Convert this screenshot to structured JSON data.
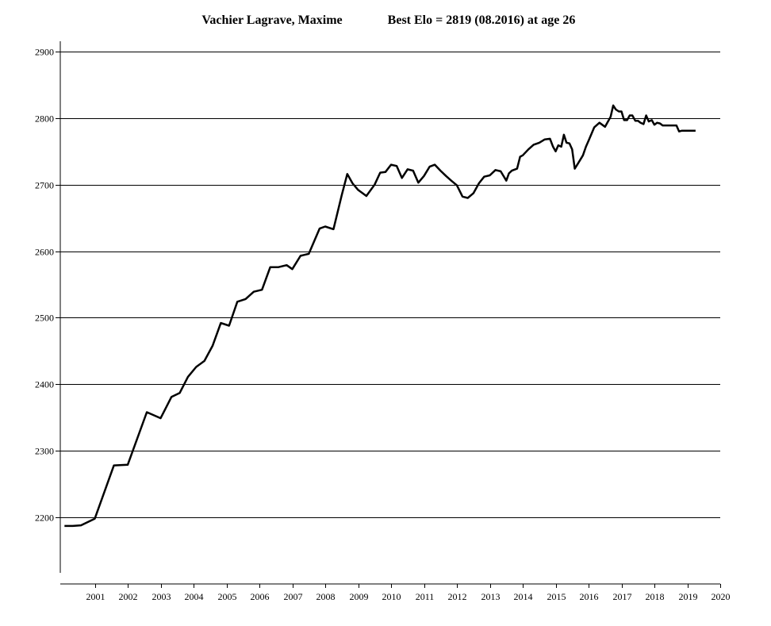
{
  "chart_data": {
    "type": "line",
    "title_name": "Vachier Lagrave, Maxime",
    "title_best": "Best Elo = 2819 (08.2016) at age 26",
    "xlabel": "",
    "ylabel": "",
    "xlim": [
      2000,
      2020
    ],
    "ylim": [
      2100,
      2900
    ],
    "x_ticks": [
      "2001",
      "2002",
      "2003",
      "2004",
      "2005",
      "2006",
      "2007",
      "2008",
      "2009",
      "2010",
      "2011",
      "2012",
      "2013",
      "2014",
      "2015",
      "2016",
      "2017",
      "2018",
      "2019",
      "2020"
    ],
    "y_ticks": [
      "2200",
      "2300",
      "2400",
      "2500",
      "2600",
      "2700",
      "2800",
      "2900"
    ],
    "grid": true,
    "series": [
      {
        "x": [
          2000.08,
          2000.33,
          2000.58,
          2001.0,
          2001.58,
          2002.0,
          2002.58,
          2003.0,
          2003.33,
          2003.58,
          2003.83,
          2004.08,
          2004.33,
          2004.58,
          2004.83,
          2005.08,
          2005.33,
          2005.58,
          2005.83,
          2006.08,
          2006.33,
          2006.58,
          2006.83,
          2007.0,
          2007.25,
          2007.5,
          2007.83,
          2008.0,
          2008.25,
          2008.5,
          2008.67,
          2008.83,
          2009.0,
          2009.25,
          2009.5,
          2009.67,
          2009.83,
          2010.0,
          2010.17,
          2010.33,
          2010.5,
          2010.67,
          2010.83,
          2011.0,
          2011.17,
          2011.33,
          2011.5,
          2011.67,
          2011.83,
          2012.0,
          2012.17,
          2012.33,
          2012.5,
          2012.67,
          2012.83,
          2013.0,
          2013.17,
          2013.33,
          2013.5,
          2013.58,
          2013.67,
          2013.83,
          2013.92,
          2014.0,
          2014.17,
          2014.33,
          2014.5,
          2014.67,
          2014.83,
          2014.92,
          2015.0,
          2015.08,
          2015.17,
          2015.25,
          2015.33,
          2015.42,
          2015.5,
          2015.58,
          2015.67,
          2015.83,
          2015.92,
          2016.0,
          2016.17,
          2016.33,
          2016.5,
          2016.67,
          2016.75,
          2016.83,
          2016.92,
          2017.0,
          2017.08,
          2017.17,
          2017.25,
          2017.33,
          2017.42,
          2017.5,
          2017.58,
          2017.67,
          2017.75,
          2017.83,
          2017.92,
          2018.0,
          2018.08,
          2018.17,
          2018.25,
          2018.33,
          2018.5,
          2018.67,
          2018.75,
          2018.83,
          2019.0,
          2019.17,
          2019.25
        ],
        "y": [
          2187,
          2187,
          2188,
          2198,
          2278,
          2279,
          2358,
          2349,
          2381,
          2387,
          2411,
          2426,
          2435,
          2458,
          2492,
          2488,
          2524,
          2528,
          2539,
          2542,
          2576,
          2576,
          2579,
          2573,
          2593,
          2596,
          2634,
          2637,
          2633,
          2684,
          2716,
          2702,
          2692,
          2683,
          2700,
          2718,
          2719,
          2730,
          2728,
          2710,
          2723,
          2721,
          2703,
          2713,
          2727,
          2730,
          2721,
          2713,
          2706,
          2699,
          2682,
          2680,
          2687,
          2702,
          2712,
          2714,
          2722,
          2720,
          2706,
          2717,
          2721,
          2724,
          2742,
          2744,
          2753,
          2760,
          2763,
          2768,
          2769,
          2757,
          2750,
          2759,
          2757,
          2775,
          2763,
          2762,
          2753,
          2724,
          2731,
          2744,
          2757,
          2766,
          2786,
          2793,
          2787,
          2802,
          2819,
          2813,
          2810,
          2810,
          2797,
          2797,
          2804,
          2804,
          2796,
          2796,
          2793,
          2791,
          2804,
          2795,
          2797,
          2790,
          2793,
          2792,
          2789,
          2789,
          2789,
          2789,
          2780,
          2781,
          2781,
          2781,
          2781
        ]
      }
    ]
  }
}
